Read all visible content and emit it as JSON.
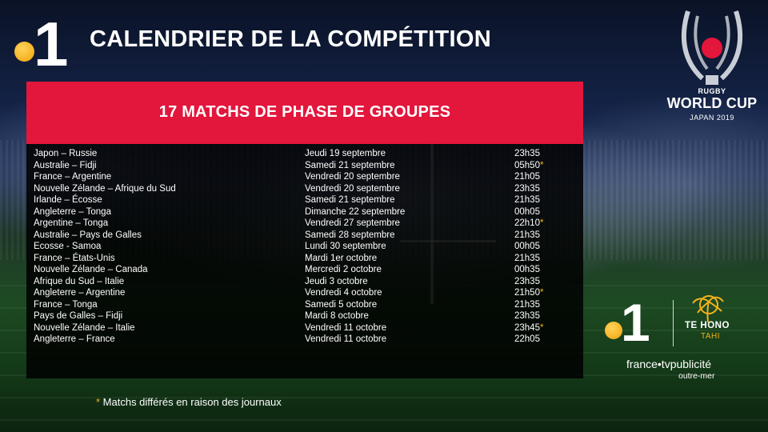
{
  "header": {
    "channel_logo_digit": "1",
    "title": "CALENDRIER DE LA COMPÉTITION"
  },
  "event_logo": {
    "line1": "RUGBY",
    "line2": "WORLD CUP",
    "line3": "JAPAN 2019"
  },
  "panel": {
    "banner_title": "17 MATCHS DE PHASE DE GROUPES",
    "banner_color": "#e3163c"
  },
  "matches": [
    {
      "match": "Japon – Russie",
      "date": "Jeudi 19 septembre",
      "time": "23h35",
      "delayed": false
    },
    {
      "match": "Australie – Fidji",
      "date": "Samedi 21 septembre",
      "time": "05h50",
      "delayed": true
    },
    {
      "match": "France – Argentine",
      "date": "Vendredi 20 septembre",
      "time": "21h05",
      "delayed": false
    },
    {
      "match": "Nouvelle Zélande – Afrique du Sud",
      "date": "Vendredi 20 septembre",
      "time": "23h35",
      "delayed": false
    },
    {
      "match": "Irlande – Écosse",
      "date": "Samedi 21 septembre",
      "time": "21h35",
      "delayed": false
    },
    {
      "match": "Angleterre – Tonga",
      "date": "Dimanche 22 septembre",
      "time": "00h05",
      "delayed": false
    },
    {
      "match": "Argentine – Tonga",
      "date": "Vendredi 27 septembre",
      "time": "22h10",
      "delayed": true
    },
    {
      "match": "Australie – Pays de Galles",
      "date": "Samedi 28 septembre",
      "time": "21h35",
      "delayed": false
    },
    {
      "match": "Ecosse - Samoa",
      "date": "Lundi 30 septembre",
      "time": "00h05",
      "delayed": false
    },
    {
      "match": "France – États-Unis",
      "date": "Mardi 1er octobre",
      "time": "21h35",
      "delayed": false
    },
    {
      "match": "Nouvelle Zélande – Canada",
      "date": "Mercredi 2 octobre",
      "time": "00h35",
      "delayed": false
    },
    {
      "match": "Afrique du Sud – Italie",
      "date": "Jeudi 3 octobre",
      "time": "23h35",
      "delayed": false
    },
    {
      "match": "Angleterre – Argentine",
      "date": "Vendredi 4 octobre",
      "time": "21h50",
      "delayed": true
    },
    {
      "match": "France – Tonga",
      "date": "Samedi 5 octobre",
      "time": "21h35",
      "delayed": false
    },
    {
      "match": "Pays de Galles – Fidji",
      "date": "Mardi 8 octobre",
      "time": "23h35",
      "delayed": false
    },
    {
      "match": "Nouvelle Zélande – Italie",
      "date": "Vendredi 11 octobre",
      "time": "23h45",
      "delayed": true
    },
    {
      "match": "Angleterre – France",
      "date": "Vendredi 11 octobre",
      "time": "22h05",
      "delayed": false
    }
  ],
  "delay_marker": "*",
  "footnote": {
    "marker": "*",
    "text": " Matchs différés en raison des journaux"
  },
  "partner_logos": {
    "channel_digit": "1",
    "tehono_line1": "TE HONO",
    "tehono_line2": "TAHI",
    "francetv_line1": "france•tvpublicité",
    "francetv_line2": "outre-mer"
  },
  "colors": {
    "accent_yellow": "#f2b21b",
    "banner_red": "#e3163c"
  }
}
